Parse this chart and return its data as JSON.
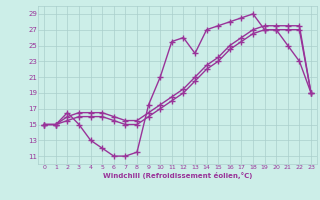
{
  "background_color": "#cceee8",
  "grid_color": "#aacfcc",
  "line_color": "#993399",
  "marker": "+",
  "markersize": 4,
  "linewidth": 1.0,
  "xlim": [
    -0.5,
    23.5
  ],
  "ylim": [
    10.0,
    30.0
  ],
  "xticks": [
    0,
    1,
    2,
    3,
    4,
    5,
    6,
    7,
    8,
    9,
    10,
    11,
    12,
    13,
    14,
    15,
    16,
    17,
    18,
    19,
    20,
    21,
    22,
    23
  ],
  "yticks": [
    11,
    13,
    15,
    17,
    19,
    21,
    23,
    25,
    27,
    29
  ],
  "xlabel": "Windchill (Refroidissement éolien,°C)",
  "curve1_x": [
    0,
    1,
    2,
    3,
    4,
    5,
    6,
    7,
    8,
    9,
    10,
    11,
    12,
    13,
    14,
    15,
    16,
    17,
    18,
    19,
    20,
    21,
    22,
    23
  ],
  "curve1_y": [
    15.0,
    15.0,
    16.5,
    15.0,
    13.0,
    12.0,
    11.0,
    11.0,
    11.5,
    17.5,
    21.0,
    25.5,
    26.0,
    24.0,
    27.0,
    27.5,
    28.0,
    28.5,
    29.0,
    27.0,
    27.0,
    25.0,
    23.0,
    19.0
  ],
  "curve2_x": [
    0,
    1,
    2,
    3,
    4,
    5,
    6,
    7,
    8,
    9,
    10,
    11,
    12,
    13,
    14,
    15,
    16,
    17,
    18,
    19,
    20,
    21,
    22,
    23
  ],
  "curve2_y": [
    15.0,
    15.0,
    15.5,
    16.0,
    16.0,
    16.0,
    15.5,
    15.0,
    15.0,
    16.0,
    17.0,
    18.0,
    19.0,
    20.5,
    22.0,
    23.0,
    24.5,
    25.5,
    26.5,
    27.0,
    27.0,
    27.0,
    27.0,
    19.0
  ],
  "curve3_x": [
    0,
    1,
    2,
    3,
    4,
    5,
    6,
    7,
    8,
    9,
    10,
    11,
    12,
    13,
    14,
    15,
    16,
    17,
    18,
    19,
    20,
    21,
    22,
    23
  ],
  "curve3_y": [
    15.0,
    15.0,
    16.0,
    16.5,
    16.5,
    16.5,
    16.0,
    15.5,
    15.5,
    16.5,
    17.5,
    18.5,
    19.5,
    21.0,
    22.5,
    23.5,
    25.0,
    26.0,
    27.0,
    27.5,
    27.5,
    27.5,
    27.5,
    19.0
  ]
}
